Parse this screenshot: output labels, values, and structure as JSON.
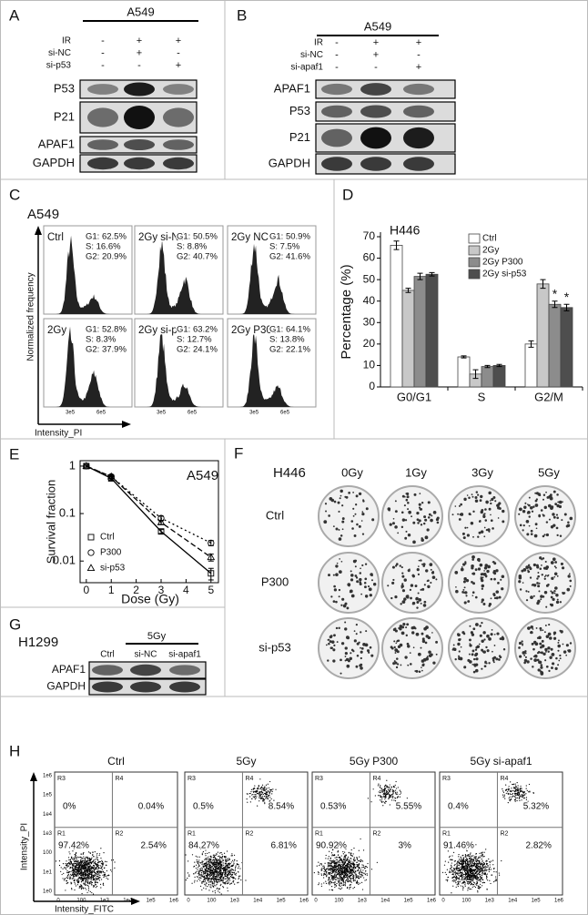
{
  "panel_a": {
    "letter": "A",
    "cell_line": "A549",
    "conditions": [
      "IR",
      "si-NC",
      "si-p53"
    ],
    "signs": [
      [
        "-",
        "+",
        "+"
      ],
      [
        "-",
        "+",
        "-"
      ],
      [
        "-",
        "-",
        "+"
      ]
    ],
    "blots": [
      "P53",
      "P21",
      "APAF1",
      "GAPDH"
    ]
  },
  "panel_b": {
    "letter": "B",
    "cell_line": "A549",
    "conditions": [
      "IR",
      "si-NC",
      "si-apaf1"
    ],
    "signs": [
      [
        "-",
        "+",
        "+"
      ],
      [
        "-",
        "+",
        "-"
      ],
      [
        "-",
        "-",
        "+"
      ]
    ],
    "blots": [
      "APAF1",
      "P53",
      "P21",
      "GAPDH"
    ]
  },
  "panel_c": {
    "letter": "C",
    "cell_line": "A549",
    "y_label": "Normalized frequency",
    "x_label": "Intensity_PI",
    "x_ticks": [
      "3e5",
      "6e5"
    ],
    "plots": [
      {
        "name": "Ctrl",
        "g1": "G1: 62.5%",
        "s": "S: 16.6%",
        "g2": "G2: 20.9%"
      },
      {
        "name": "2Gy si-NC",
        "g1": "G1: 50.5%",
        "s": "S: 8.8%",
        "g2": "G2: 40.7%"
      },
      {
        "name": "2Gy NC",
        "g1": "G1: 50.9%",
        "s": "S: 7.5%",
        "g2": "G2: 41.6%"
      },
      {
        "name": "2Gy",
        "g1": "G1: 52.8%",
        "s": "S: 8.3%",
        "g2": "G2: 37.9%"
      },
      {
        "name": "2Gy si-p53",
        "g1": "G1: 63.2%",
        "s": "S: 12.7%",
        "g2": "G2: 24.1%"
      },
      {
        "name": "2Gy P300",
        "g1": "G1: 64.1%",
        "s": "S: 13.8%",
        "g2": "G2: 22.1%"
      }
    ]
  },
  "chart_data": [
    {
      "type": "bar",
      "letter": "D",
      "title": "H446",
      "y_label": "Percentage (%)",
      "categories": [
        "G0/G1",
        "S",
        "G2/M"
      ],
      "ylim": [
        0,
        70
      ],
      "yticks": [
        0,
        10,
        20,
        30,
        40,
        50,
        60,
        70
      ],
      "series": [
        {
          "name": "Ctrl",
          "color": "#ffffff",
          "values": [
            66,
            14,
            20
          ],
          "errors": [
            2,
            0.5,
            1.5
          ]
        },
        {
          "name": "2Gy",
          "color": "#c8c8c8",
          "values": [
            45,
            6,
            48
          ],
          "errors": [
            1,
            2,
            2
          ]
        },
        {
          "name": "2Gy P300",
          "color": "#8c8c8c",
          "values": [
            51.5,
            9.5,
            38.5
          ],
          "errors": [
            1.5,
            0.5,
            1.5
          ],
          "value_annotations": [
            null,
            null,
            "*"
          ]
        },
        {
          "name": "2Gy si-p53",
          "color": "#4e4e4e",
          "values": [
            52.5,
            10,
            37
          ],
          "errors": [
            0.8,
            0.5,
            1.5
          ],
          "value_annotations": [
            null,
            null,
            "*"
          ]
        }
      ]
    },
    {
      "type": "line",
      "letter": "E",
      "title": "A549",
      "x_label": "Dose (Gy)",
      "y_label": "Survival fraction",
      "log_y": true,
      "x": [
        0,
        1,
        3,
        5
      ],
      "xlim": [
        -0.25,
        5.3
      ],
      "xticks": [
        0,
        1,
        2,
        3,
        4,
        5
      ],
      "ylim": [
        0.0035,
        1.3
      ],
      "yticks": [
        0.01,
        0.1,
        1
      ],
      "series": [
        {
          "name": "Ctrl",
          "color": "#000000",
          "marker": "square",
          "dash": "solid",
          "values": [
            1,
            0.55,
            0.042,
            0.0055
          ],
          "errors": [
            0.05,
            0.05,
            0.004,
            0.0015
          ]
        },
        {
          "name": "P300",
          "color": "#000000",
          "marker": "circle",
          "dash": "dot",
          "values": [
            1,
            0.6,
            0.08,
            0.024
          ],
          "errors": [
            0.05,
            0.06,
            0.008,
            0.003
          ]
        },
        {
          "name": "si-p53",
          "color": "#000000",
          "marker": "triangle",
          "dash": "dash",
          "values": [
            1,
            0.6,
            0.065,
            0.012
          ],
          "errors": [
            0.05,
            0.05,
            0.006,
            0.002
          ]
        }
      ]
    }
  ],
  "panel_f": {
    "letter": "F",
    "cell_line": "H446",
    "doses": [
      "0Gy",
      "1Gy",
      "3Gy",
      "5Gy"
    ],
    "rows": [
      "Ctrl",
      "P300",
      "si-p53"
    ]
  },
  "panel_g": {
    "letter": "G",
    "cell_line": "H1299",
    "dose": "5Gy",
    "lanes": [
      "Ctrl",
      "si-NC",
      "si-apaf1"
    ],
    "blots": [
      "APAF1",
      "GAPDH"
    ]
  },
  "panel_h": {
    "letter": "H",
    "y_label": "Intensity_PI",
    "x_label": "Intensity_FITC",
    "gates": [
      "R3",
      "R4",
      "R1",
      "R2"
    ],
    "y_ticks": [
      "1e6",
      "1e5",
      "1e4",
      "1e3",
      "100",
      "1e1",
      "1e0"
    ],
    "x_ticks": [
      "0",
      "100",
      "1e3",
      "1e4",
      "1e5",
      "1e6"
    ],
    "plots": [
      {
        "title": "Ctrl",
        "quadrants": [
          "0%",
          "0.04%",
          "97.42%",
          "2.54%"
        ]
      },
      {
        "title": "5Gy",
        "quadrants": [
          "0.5%",
          "8.54%",
          "84.27%",
          "6.81%"
        ]
      },
      {
        "title": "5Gy P300",
        "quadrants": [
          "0.53%",
          "5.55%",
          "90.92%",
          "3%"
        ]
      },
      {
        "title": "5Gy si-apaf1",
        "quadrants": [
          "0.4%",
          "5.32%",
          "91.46%",
          "2.82%"
        ]
      }
    ]
  }
}
